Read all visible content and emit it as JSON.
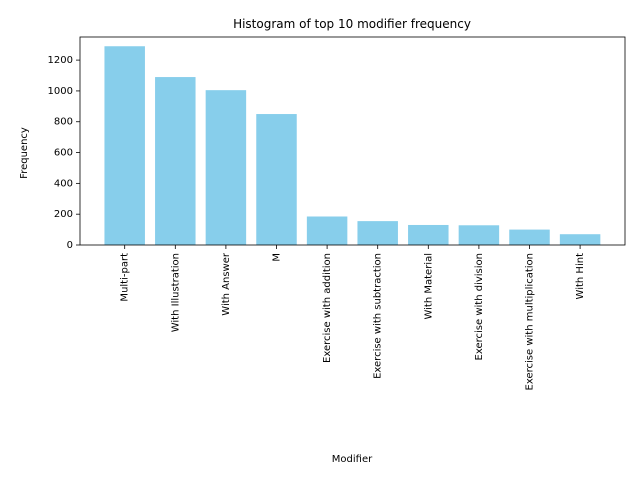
{
  "chart_data": {
    "type": "bar",
    "title": "Histogram of top 10 modifier frequency",
    "xlabel": "Modifier",
    "ylabel": "Frequency",
    "categories": [
      "Multi-part",
      "With Illustration",
      "With Answer",
      "M",
      "Exercise with addition",
      "Exercise with subtraction",
      "With Material",
      "Exercise with division",
      "Exercise with multiplication",
      "With Hint"
    ],
    "values": [
      1290,
      1090,
      1005,
      850,
      185,
      155,
      130,
      128,
      100,
      70
    ],
    "ylim": [
      0,
      1350
    ],
    "yticks": [
      0,
      200,
      400,
      600,
      800,
      1000,
      1200
    ],
    "bar_color": "#87ceeb",
    "grid": false,
    "legend": "none"
  }
}
